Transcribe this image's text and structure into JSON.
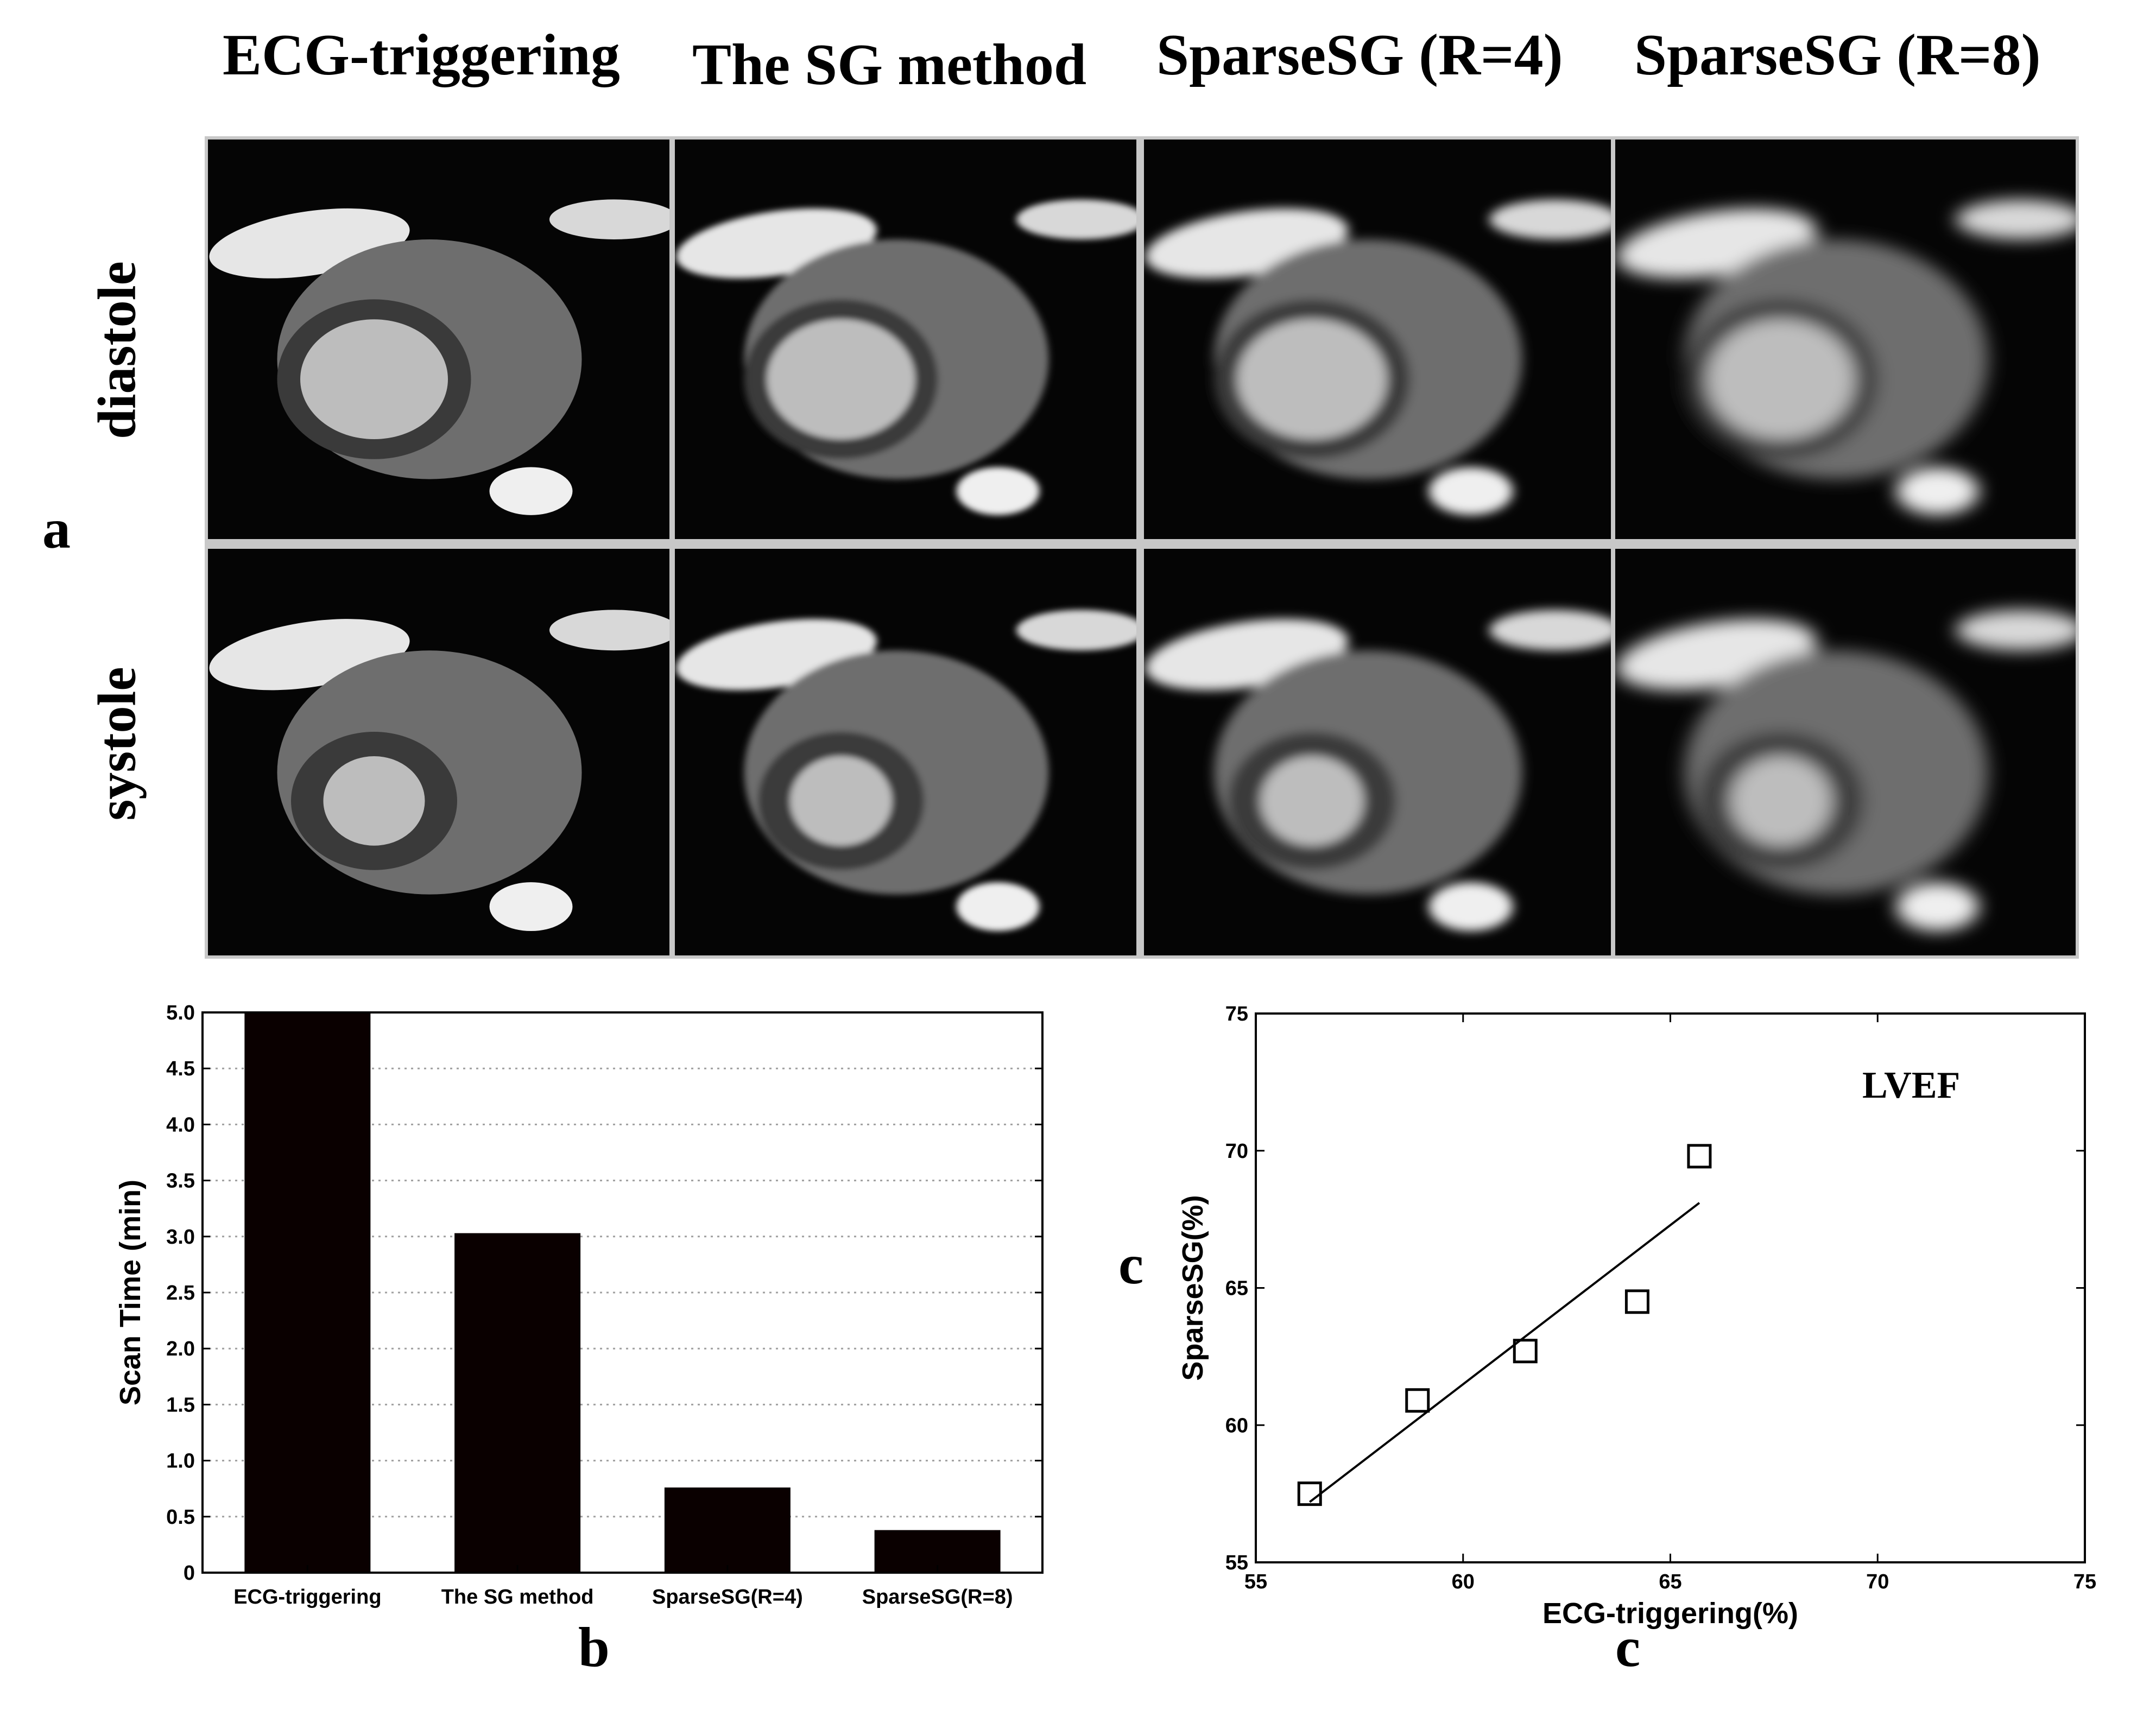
{
  "figure": {
    "columns": [
      "ECG-triggering",
      "The SG method",
      "SparseSG (R=4)",
      "SparseSG (R=8)"
    ],
    "rows": [
      "diastole",
      "systole"
    ],
    "panel_labels": {
      "a": "a",
      "b": "b",
      "c_left": "c",
      "c_bottom": "c"
    },
    "image_style": "grayscale cardiac MRI short-axis images, black background"
  },
  "chart_data": [
    {
      "type": "bar",
      "categories": [
        "ECG-triggering",
        "The SG method",
        "SparseSG(R=4)",
        "SparseSG(R=8)"
      ],
      "values": [
        5.0,
        3.03,
        0.76,
        0.38
      ],
      "title": "",
      "xlabel": "",
      "ylabel": "Scan Time (min)",
      "ylim": [
        0,
        5.0
      ],
      "yticks": [
        "0",
        "0.5",
        "1.0",
        "1.5",
        "2.0",
        "2.5",
        "3.0",
        "3.5",
        "4.0",
        "4.5",
        "5.0"
      ],
      "grid": "horizontal dotted",
      "bar_color": "#0a0000"
    },
    {
      "type": "scatter",
      "annotation": "LVEF",
      "xlabel": "ECG-triggering(%)",
      "ylabel": "SparseSG(%)",
      "xlim": [
        55,
        75
      ],
      "ylim": [
        55,
        75
      ],
      "xticks": [
        "55",
        "60",
        "65",
        "70",
        "75"
      ],
      "yticks": [
        "55",
        "60",
        "65",
        "70",
        "75"
      ],
      "points": [
        {
          "x": 56.3,
          "y": 57.5
        },
        {
          "x": 58.9,
          "y": 60.9
        },
        {
          "x": 61.5,
          "y": 62.7
        },
        {
          "x": 64.2,
          "y": 64.5
        },
        {
          "x": 65.7,
          "y": 69.8
        }
      ],
      "fit_line": {
        "x": [
          56.3,
          65.7
        ],
        "y": [
          57.2,
          68.1
        ]
      },
      "marker": "open square"
    }
  ]
}
